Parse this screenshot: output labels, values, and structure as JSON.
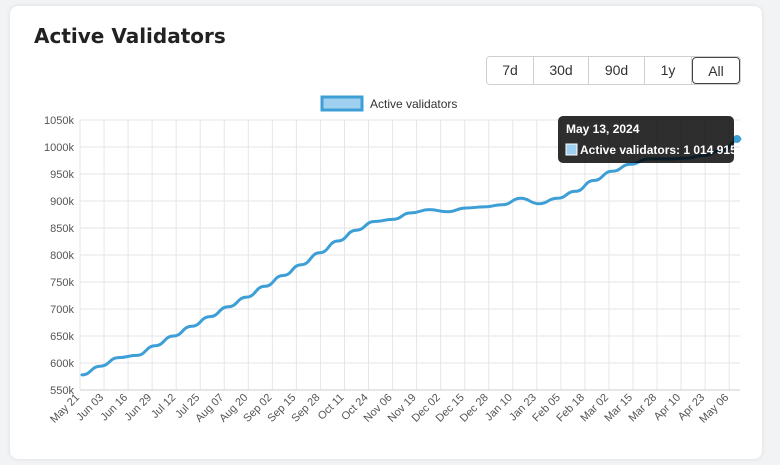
{
  "card": {
    "title": "Active Validators",
    "ranges": [
      {
        "label": "7d",
        "active": false
      },
      {
        "label": "30d",
        "active": false
      },
      {
        "label": "90d",
        "active": false
      },
      {
        "label": "1y",
        "active": false
      },
      {
        "label": "All",
        "active": true
      }
    ]
  },
  "chart_data": {
    "type": "line",
    "legend": {
      "label": "Active validators",
      "position": "top-center"
    },
    "grid": true,
    "ylim": [
      550000,
      1050000
    ],
    "yticks": [
      550000,
      600000,
      650000,
      700000,
      750000,
      800000,
      850000,
      900000,
      950000,
      1000000,
      1050000
    ],
    "ytick_labels": [
      "550k",
      "600k",
      "650k",
      "700k",
      "750k",
      "800k",
      "850k",
      "900k",
      "950k",
      "1000k",
      "1050k"
    ],
    "xtick_labels": [
      "May 21",
      "Jun 03",
      "Jun 16",
      "Jun 29",
      "Jul 12",
      "Jul 25",
      "Aug 07",
      "Aug 20",
      "Sep 02",
      "Sep 15",
      "Sep 28",
      "Oct 11",
      "Oct 24",
      "Nov 06",
      "Nov 19",
      "Dec 02",
      "Dec 15",
      "Dec 28",
      "Jan 10",
      "Jan 23",
      "Feb 05",
      "Feb 18",
      "Mar 02",
      "Mar 15",
      "Mar 28",
      "Apr 10",
      "Apr 23",
      "May 06"
    ],
    "series": [
      {
        "name": "Active validators",
        "color": "#3d9fd6",
        "fill": "#9fd0ef",
        "values": [
          578000,
          594000,
          610000,
          614000,
          632000,
          650000,
          668000,
          686000,
          704000,
          722000,
          742000,
          762000,
          782000,
          804000,
          826000,
          846000,
          862000,
          866000,
          878000,
          884000,
          880000,
          887000,
          889000,
          893000,
          905000,
          895000,
          905000,
          918000,
          938000,
          955000,
          968000,
          978000,
          978000,
          979000,
          984000,
          994000,
          1014915
        ]
      }
    ],
    "tooltip": {
      "date": "May 13, 2024",
      "label": "Active validators: 1 014 915"
    }
  }
}
